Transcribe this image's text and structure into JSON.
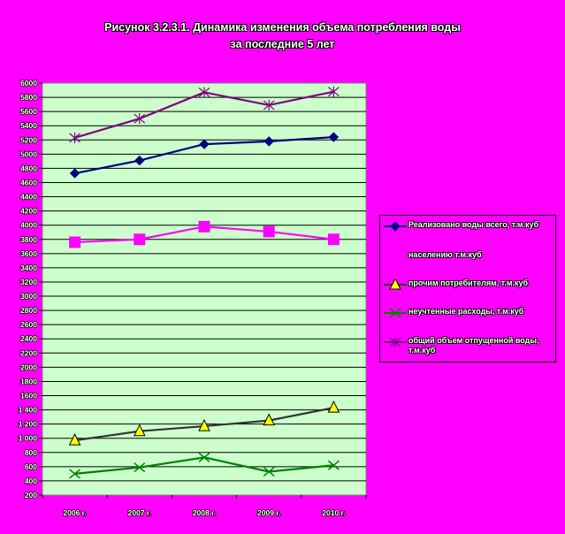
{
  "chart_data": {
    "type": "line",
    "title_line1": "Рисунок 3.2.3.1. Динамика изменения объема потребления воды",
    "title_line2": "за последние 5 лет",
    "categories": [
      "2006 г.",
      "2007 г.",
      "2008 г.",
      "2009 г.",
      "2010 г."
    ],
    "ylim": [
      200,
      6000
    ],
    "yticks": [
      200,
      400,
      600,
      800,
      1000,
      1200,
      1400,
      1600,
      1800,
      2000,
      2200,
      2400,
      2600,
      2800,
      3000,
      3200,
      3400,
      3600,
      3800,
      4000,
      4200,
      4400,
      4600,
      4800,
      5000,
      5200,
      5400,
      5600,
      5800,
      6000
    ],
    "ytick_labels": [
      "200",
      "400",
      "600",
      "800",
      "1 000",
      "1 200",
      "1 400",
      "1600",
      "1800",
      "2000",
      "2200",
      "2400",
      "2600",
      "2800",
      "3000",
      "3200",
      "3400",
      "3600",
      "3800",
      "4000",
      "4200",
      "4400",
      "4600",
      "4800",
      "5000",
      "5200",
      "5400",
      "5600",
      "5800",
      "6000"
    ],
    "grid": true,
    "legend_position": "right",
    "plot_background": "#ccffcc",
    "series": [
      {
        "name": "Реализовано воды всего, т.м.куб",
        "values": [
          4730,
          4910,
          5140,
          5180,
          5240
        ],
        "color": "#000080",
        "marker": "diamond"
      },
      {
        "name": "населению т.м.куб",
        "values": [
          3760,
          3800,
          3980,
          3910,
          3800
        ],
        "color": "#ff00ff",
        "marker": "square"
      },
      {
        "name": "прочим потребителям, т.м.куб",
        "values": [
          970,
          1100,
          1170,
          1250,
          1430
        ],
        "color": "#333333",
        "marker": "triangle"
      },
      {
        "name": "неучтенные расходы, т.м.куб",
        "values": [
          500,
          590,
          730,
          530,
          620
        ],
        "color": "#008000",
        "marker": "x"
      },
      {
        "name": "общий объем отпущенной воды, т.м.куб",
        "values": [
          5230,
          5500,
          5870,
          5690,
          5880
        ],
        "color": "#800080",
        "marker": "star"
      }
    ]
  }
}
